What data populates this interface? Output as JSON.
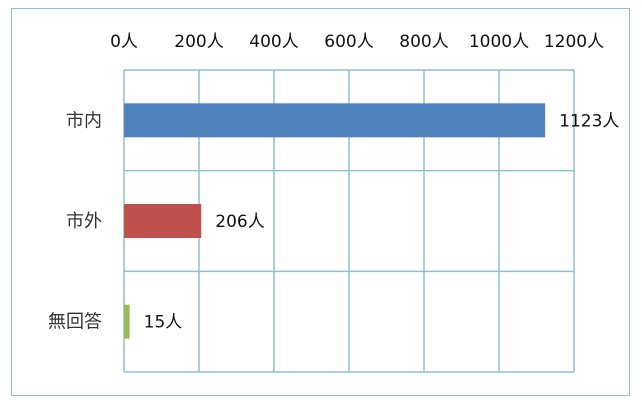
{
  "chart_data": {
    "type": "bar",
    "orientation": "horizontal",
    "categories": [
      "市内",
      "市外",
      "無回答"
    ],
    "values": [
      1123,
      206,
      15
    ],
    "data_labels": [
      "1123人",
      "206人",
      "15人"
    ],
    "bar_colors": [
      "#4f81bd",
      "#c0504d",
      "#9bbb59"
    ],
    "x_ticks": [
      0,
      200,
      400,
      600,
      800,
      1000,
      1200
    ],
    "x_tick_labels": [
      "0人",
      "200人",
      "400人",
      "600人",
      "800人",
      "1000人",
      "1200人"
    ],
    "xlim": [
      0,
      1200
    ],
    "x_axis_position": "top",
    "grid": true,
    "grid_color": "#8cc2cf",
    "title": "",
    "xlabel": "",
    "ylabel": ""
  }
}
